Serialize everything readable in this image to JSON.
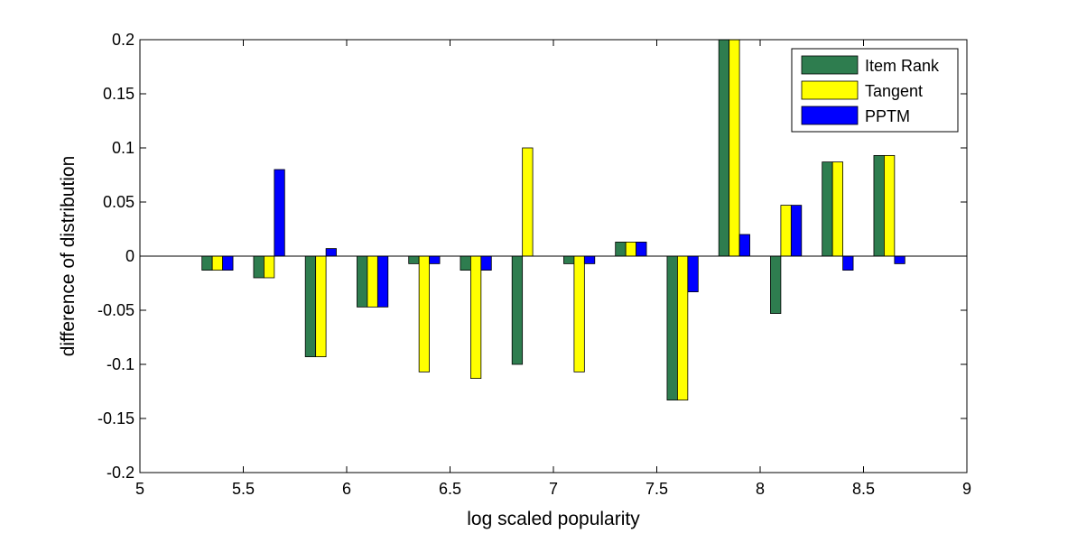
{
  "chart_data": {
    "type": "bar",
    "xlabel": "log scaled popularity",
    "ylabel": "difference of distribution",
    "xlim": [
      5,
      9
    ],
    "ylim": [
      -0.2,
      0.2
    ],
    "xticks": [
      5,
      5.5,
      6,
      6.5,
      7,
      7.5,
      8,
      8.5,
      9
    ],
    "xtick_labels": [
      "5",
      "5.5",
      "6",
      "6.5",
      "7",
      "7.5",
      "8",
      "8.5",
      "9"
    ],
    "yticks": [
      -0.2,
      -0.15,
      -0.1,
      -0.05,
      0,
      0.05,
      0.1,
      0.15,
      0.2
    ],
    "ytick_labels": [
      "-0.2",
      "-0.15",
      "-0.1",
      "-0.05",
      "0",
      "0.05",
      "0.1",
      "0.15",
      "0.2"
    ],
    "x": [
      5.375,
      5.625,
      5.875,
      6.125,
      6.375,
      6.625,
      6.875,
      7.125,
      7.375,
      7.625,
      7.875,
      8.125,
      8.375,
      8.625
    ],
    "bar_width": 0.05,
    "legend_position": "top-right",
    "grid": false,
    "series": [
      {
        "name": "Item Rank",
        "color": "#2e7d4f",
        "values": [
          -0.013,
          -0.02,
          -0.093,
          -0.047,
          -0.007,
          -0.013,
          -0.1,
          -0.007,
          0.013,
          -0.133,
          0.2,
          -0.053,
          0.087,
          0.093
        ]
      },
      {
        "name": "Tangent",
        "color": "#ffff00",
        "values": [
          -0.013,
          -0.02,
          -0.093,
          -0.047,
          -0.107,
          -0.113,
          0.1,
          -0.107,
          0.013,
          -0.133,
          0.2,
          0.047,
          0.087,
          0.093
        ]
      },
      {
        "name": "PPTM",
        "color": "#0000ff",
        "values": [
          -0.013,
          0.08,
          0.007,
          -0.047,
          -0.007,
          -0.013,
          0.0,
          -0.007,
          0.013,
          -0.033,
          0.02,
          0.047,
          -0.013,
          -0.007
        ]
      }
    ]
  }
}
